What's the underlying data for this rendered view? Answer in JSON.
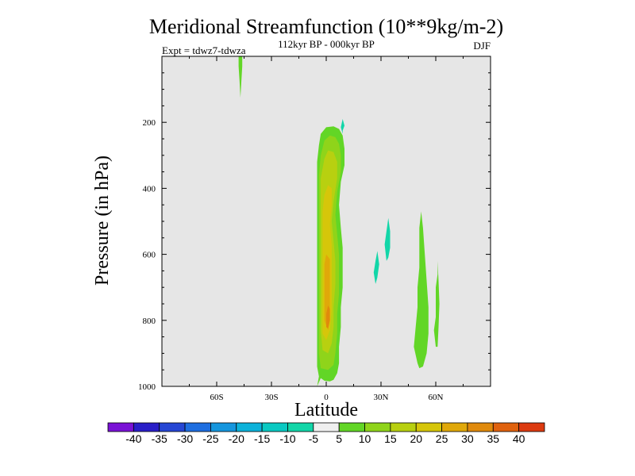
{
  "chart_data": {
    "type": "contour",
    "title": "Meridional Streamfunction (10**9kg/m-2)",
    "subtitle": "112kyr BP - 000kyr BP",
    "expt_label": "Expt = tdwz7-tdwza",
    "season": "DJF",
    "xlabel": "Latitude",
    "ylabel": "Pressure (in hPa)",
    "xlim": [
      -90,
      90
    ],
    "ylim": [
      1000,
      0
    ],
    "x_ticks": [
      {
        "value": -60,
        "label": "60S"
      },
      {
        "value": -30,
        "label": "30S"
      },
      {
        "value": 0,
        "label": "0"
      },
      {
        "value": 30,
        "label": "30N"
      },
      {
        "value": 60,
        "label": "60N"
      }
    ],
    "y_ticks": [
      {
        "value": 200,
        "label": "200"
      },
      {
        "value": 400,
        "label": "400"
      },
      {
        "value": 600,
        "label": "600"
      },
      {
        "value": 800,
        "label": "800"
      },
      {
        "value": 1000,
        "label": "1000"
      }
    ],
    "colorbar": {
      "labels": [
        "-40",
        "-35",
        "-30",
        "-25",
        "-20",
        "-15",
        "-10",
        "-5",
        "5",
        "10",
        "15",
        "20",
        "25",
        "30",
        "35",
        "40"
      ],
      "colors": [
        "#7a12d6",
        "#2a1fc8",
        "#2646d4",
        "#1e6ee0",
        "#1596de",
        "#0cb2da",
        "#0ac9c2",
        "#12d6a8",
        "#efefef",
        "#62d626",
        "#8fd41a",
        "#b8d010",
        "#d6c60a",
        "#e0a80a",
        "#e08a0c",
        "#e0620e",
        "#dc3a10"
      ]
    },
    "contours": [
      {
        "level": 5,
        "color": "#62d626",
        "polygon": [
          [
            -5,
            1000
          ],
          [
            -4,
            970
          ],
          [
            -5,
            940
          ],
          [
            -5,
            900
          ],
          [
            -5,
            850
          ],
          [
            -5,
            800
          ],
          [
            -5,
            740
          ],
          [
            -5,
            680
          ],
          [
            -5,
            620
          ],
          [
            -5,
            560
          ],
          [
            -5,
            500
          ],
          [
            -5,
            440
          ],
          [
            -5,
            380
          ],
          [
            -5,
            320
          ],
          [
            -4,
            270
          ],
          [
            -3,
            235
          ],
          [
            0,
            215
          ],
          [
            4,
            212
          ],
          [
            7,
            220
          ],
          [
            9,
            240
          ],
          [
            10,
            280
          ],
          [
            10,
            330
          ],
          [
            8,
            380
          ],
          [
            7,
            450
          ],
          [
            8,
            520
          ],
          [
            9,
            580
          ],
          [
            9,
            640
          ],
          [
            9,
            700
          ],
          [
            8,
            760
          ],
          [
            8,
            820
          ],
          [
            7,
            880
          ],
          [
            7,
            930
          ],
          [
            6,
            960
          ],
          [
            4,
            980
          ],
          [
            2,
            985
          ],
          [
            -1,
            983
          ],
          [
            -3,
            975
          ]
        ]
      },
      {
        "level": 10,
        "color": "#8fd41a",
        "polygon": [
          [
            -3,
            945
          ],
          [
            -4,
            900
          ],
          [
            -4,
            840
          ],
          [
            -4,
            760
          ],
          [
            -4,
            680
          ],
          [
            -4,
            600
          ],
          [
            -4,
            520
          ],
          [
            -4,
            440
          ],
          [
            -4,
            360
          ],
          [
            -3,
            300
          ],
          [
            -1,
            255
          ],
          [
            2,
            240
          ],
          [
            5,
            245
          ],
          [
            7,
            265
          ],
          [
            8,
            300
          ],
          [
            8,
            350
          ],
          [
            6,
            410
          ],
          [
            5,
            480
          ],
          [
            6,
            540
          ],
          [
            7,
            600
          ],
          [
            7,
            660
          ],
          [
            7,
            720
          ],
          [
            6,
            780
          ],
          [
            6,
            840
          ],
          [
            5,
            900
          ],
          [
            4,
            935
          ],
          [
            1,
            950
          ]
        ]
      },
      {
        "level": 15,
        "color": "#b8d010",
        "polygon": [
          [
            -2,
            890
          ],
          [
            -3,
            830
          ],
          [
            -3,
            760
          ],
          [
            -3,
            680
          ],
          [
            -3,
            600
          ],
          [
            -3,
            520
          ],
          [
            -3,
            440
          ],
          [
            -3,
            370
          ],
          [
            -1,
            310
          ],
          [
            1,
            285
          ],
          [
            4,
            290
          ],
          [
            6,
            320
          ],
          [
            6,
            370
          ],
          [
            4,
            440
          ],
          [
            3,
            500
          ],
          [
            4,
            560
          ],
          [
            5,
            620
          ],
          [
            5,
            690
          ],
          [
            4,
            760
          ],
          [
            4,
            820
          ],
          [
            3,
            870
          ],
          [
            1,
            900
          ]
        ]
      },
      {
        "level": 20,
        "color": "#d6c60a",
        "polygon": [
          [
            -2,
            840
          ],
          [
            -2,
            770
          ],
          [
            -2,
            700
          ],
          [
            -2,
            620
          ],
          [
            -2,
            540
          ],
          [
            -2,
            470
          ],
          [
            -1,
            420
          ],
          [
            1,
            390
          ],
          [
            3,
            400
          ],
          [
            3,
            450
          ],
          [
            2,
            510
          ],
          [
            3,
            570
          ],
          [
            3,
            630
          ],
          [
            3,
            700
          ],
          [
            3,
            770
          ],
          [
            2,
            830
          ],
          [
            0,
            860
          ]
        ]
      },
      {
        "level": 25,
        "color": "#e0a80a",
        "polygon": [
          [
            -1,
            800
          ],
          [
            -1,
            740
          ],
          [
            -1,
            680
          ],
          [
            -1,
            630
          ],
          [
            0,
            600
          ],
          [
            2,
            615
          ],
          [
            2,
            680
          ],
          [
            2,
            740
          ],
          [
            2,
            800
          ],
          [
            1,
            830
          ]
        ]
      },
      {
        "level": 30,
        "color": "#e08a0c",
        "polygon": [
          [
            0,
            820
          ],
          [
            0,
            780
          ],
          [
            1,
            755
          ],
          [
            2,
            765
          ],
          [
            2,
            800
          ],
          [
            1,
            825
          ]
        ]
      },
      {
        "level": 5,
        "color": "#62d626",
        "polygon": [
          [
            -48,
            0
          ],
          [
            -46,
            0
          ],
          [
            -46,
            30
          ],
          [
            -46.5,
            75
          ],
          [
            -47,
            125
          ],
          [
            -47.5,
            75
          ],
          [
            -48,
            30
          ]
        ]
      },
      {
        "level": -5,
        "color": "#12d6a8",
        "polygon": [
          [
            9,
            235
          ],
          [
            8,
            215
          ],
          [
            9,
            190
          ],
          [
            10,
            210
          ],
          [
            9,
            225
          ]
        ]
      },
      {
        "level": -5,
        "color": "#12d6a8",
        "polygon": [
          [
            27,
            690
          ],
          [
            26,
            655
          ],
          [
            27,
            620
          ],
          [
            28,
            590
          ],
          [
            29,
            630
          ],
          [
            28,
            670
          ]
        ]
      },
      {
        "level": -5,
        "color": "#12d6a8",
        "polygon": [
          [
            33,
            620
          ],
          [
            32,
            570
          ],
          [
            33,
            530
          ],
          [
            34,
            490
          ],
          [
            35,
            530
          ],
          [
            35,
            580
          ],
          [
            34,
            610
          ]
        ]
      },
      {
        "level": 5,
        "color": "#62d626",
        "polygon": [
          [
            50,
            930
          ],
          [
            48,
            880
          ],
          [
            49,
            820
          ],
          [
            50,
            760
          ],
          [
            50,
            700
          ],
          [
            51,
            640
          ],
          [
            51,
            580
          ],
          [
            51,
            520
          ],
          [
            52,
            470
          ],
          [
            53,
            520
          ],
          [
            54,
            600
          ],
          [
            55,
            680
          ],
          [
            56,
            760
          ],
          [
            56,
            840
          ],
          [
            55,
            900
          ],
          [
            53,
            940
          ],
          [
            51,
            945
          ]
        ]
      },
      {
        "level": 5,
        "color": "#62d626",
        "polygon": [
          [
            60,
            880
          ],
          [
            59,
            830
          ],
          [
            60,
            790
          ],
          [
            60,
            740
          ],
          [
            60,
            700
          ],
          [
            61,
            660
          ],
          [
            61,
            620
          ],
          [
            61.5,
            680
          ],
          [
            62,
            750
          ],
          [
            61.5,
            820
          ],
          [
            61,
            880
          ]
        ]
      }
    ]
  }
}
